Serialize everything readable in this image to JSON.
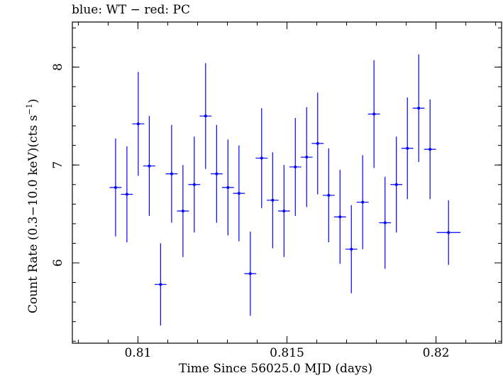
{
  "chart_data": {
    "type": "scatter",
    "title": "blue: WT − red: PC",
    "xlabel": "Time Since 56025.0 MJD (days)",
    "ylabel_parts": [
      "Count Rate (0.3−10.0 keV)(cts s",
      "−1",
      ")"
    ],
    "xlim": [
      0.8078,
      0.8222
    ],
    "ylim": [
      5.18,
      8.46
    ],
    "xticks_major": [
      0.81,
      0.815,
      0.82
    ],
    "xticks_major_labels": [
      "0.81",
      "0.815",
      "0.82"
    ],
    "xtick_minor_step": 0.001,
    "yticks_major": [
      6,
      7,
      8
    ],
    "yticks_major_labels": [
      "6",
      "7",
      "8"
    ],
    "ytick_minor_step": 0.2,
    "grid": false,
    "series": [
      {
        "name": "WT",
        "color": "#0000ff",
        "points": [
          {
            "x": 0.80925,
            "xerr": 0.0002,
            "y": 6.77,
            "yerr": 0.5
          },
          {
            "x": 0.80963,
            "xerr": 0.0002,
            "y": 6.7,
            "yerr": 0.49
          },
          {
            "x": 0.81001,
            "xerr": 0.0002,
            "y": 7.42,
            "yerr": 0.53
          },
          {
            "x": 0.81038,
            "xerr": 0.0002,
            "y": 6.99,
            "yerr": 0.51
          },
          {
            "x": 0.81076,
            "xerr": 0.0002,
            "y": 5.78,
            "yerr": 0.42
          },
          {
            "x": 0.81113,
            "xerr": 0.0002,
            "y": 6.91,
            "yerr": 0.5
          },
          {
            "x": 0.81151,
            "xerr": 0.0002,
            "y": 6.53,
            "yerr": 0.47
          },
          {
            "x": 0.81189,
            "xerr": 0.0002,
            "y": 6.8,
            "yerr": 0.49
          },
          {
            "x": 0.81227,
            "xerr": 0.0002,
            "y": 7.5,
            "yerr": 0.54
          },
          {
            "x": 0.81264,
            "xerr": 0.0002,
            "y": 6.91,
            "yerr": 0.5
          },
          {
            "x": 0.81302,
            "xerr": 0.0002,
            "y": 6.77,
            "yerr": 0.49
          },
          {
            "x": 0.81339,
            "xerr": 0.0002,
            "y": 6.71,
            "yerr": 0.49
          },
          {
            "x": 0.81377,
            "xerr": 0.0002,
            "y": 5.89,
            "yerr": 0.43
          },
          {
            "x": 0.81415,
            "xerr": 0.0002,
            "y": 7.07,
            "yerr": 0.51
          },
          {
            "x": 0.81452,
            "xerr": 0.0002,
            "y": 6.64,
            "yerr": 0.49
          },
          {
            "x": 0.8149,
            "xerr": 0.0002,
            "y": 6.53,
            "yerr": 0.47
          },
          {
            "x": 0.81528,
            "xerr": 0.0002,
            "y": 6.98,
            "yerr": 0.5
          },
          {
            "x": 0.81566,
            "xerr": 0.0002,
            "y": 7.08,
            "yerr": 0.51
          },
          {
            "x": 0.81603,
            "xerr": 0.0002,
            "y": 7.22,
            "yerr": 0.52
          },
          {
            "x": 0.8164,
            "xerr": 0.0002,
            "y": 6.69,
            "yerr": 0.48
          },
          {
            "x": 0.81678,
            "xerr": 0.0002,
            "y": 6.47,
            "yerr": 0.48
          },
          {
            "x": 0.81716,
            "xerr": 0.0002,
            "y": 6.14,
            "yerr": 0.45
          },
          {
            "x": 0.81754,
            "xerr": 0.0002,
            "y": 6.62,
            "yerr": 0.48
          },
          {
            "x": 0.81792,
            "xerr": 0.0002,
            "y": 7.52,
            "yerr": 0.55
          },
          {
            "x": 0.81829,
            "xerr": 0.0002,
            "y": 6.41,
            "yerr": 0.47
          },
          {
            "x": 0.81867,
            "xerr": 0.0002,
            "y": 6.8,
            "yerr": 0.49
          },
          {
            "x": 0.81904,
            "xerr": 0.0002,
            "y": 7.17,
            "yerr": 0.52
          },
          {
            "x": 0.81942,
            "xerr": 0.0002,
            "y": 7.58,
            "yerr": 0.55
          },
          {
            "x": 0.8198,
            "xerr": 0.0002,
            "y": 7.16,
            "yerr": 0.51
          },
          {
            "x": 0.82042,
            "xerr": 0.0004,
            "y": 6.31,
            "yerr": 0.33
          }
        ]
      }
    ]
  }
}
